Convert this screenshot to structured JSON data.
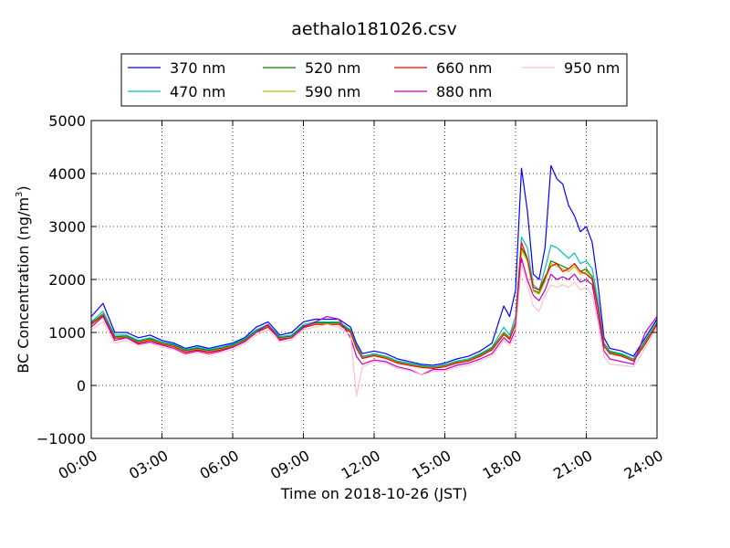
{
  "chart_data": {
    "type": "line",
    "title": "aethalo181026.csv",
    "xlabel": "Time on 2018-10-26 (JST)",
    "ylabel": "BC Concentration (ng/m",
    "ylabel_sup": "3",
    "ylabel_end": ")",
    "x_unit": "hour",
    "xlim": [
      0,
      24
    ],
    "ylim": [
      -1000,
      5000
    ],
    "x_ticks": [
      0,
      3,
      6,
      9,
      12,
      15,
      18,
      21,
      24
    ],
    "x_tick_labels": [
      "00:00",
      "03:00",
      "06:00",
      "09:00",
      "12:00",
      "15:00",
      "18:00",
      "21:00",
      "24:00"
    ],
    "y_ticks": [
      -1000,
      0,
      1000,
      2000,
      3000,
      4000,
      5000
    ],
    "y_tick_labels": [
      "−1000",
      "0",
      "1000",
      "2000",
      "3000",
      "4000",
      "5000"
    ],
    "grid": true,
    "legend_position": "top",
    "x": [
      0,
      0.5,
      1,
      1.5,
      2,
      2.5,
      3,
      3.5,
      4,
      4.5,
      5,
      5.5,
      6,
      6.5,
      7,
      7.5,
      8,
      8.5,
      9,
      9.5,
      10,
      10.5,
      11,
      11.25,
      11.5,
      12,
      12.5,
      13,
      13.5,
      14,
      14.5,
      15,
      15.5,
      16,
      16.5,
      17,
      17.5,
      17.75,
      18,
      18.25,
      18.5,
      18.75,
      19,
      19.25,
      19.5,
      19.75,
      20,
      20.25,
      20.5,
      20.75,
      21,
      21.25,
      21.5,
      21.75,
      22,
      22.5,
      23,
      23.5,
      24
    ],
    "series": [
      {
        "name": "370 nm",
        "color": "#0000ff",
        "values": [
          1300,
          1550,
          1000,
          1000,
          900,
          950,
          850,
          800,
          700,
          750,
          700,
          750,
          800,
          900,
          1100,
          1200,
          950,
          1000,
          1200,
          1250,
          1250,
          1250,
          1100,
          800,
          600,
          650,
          600,
          500,
          450,
          400,
          380,
          420,
          500,
          550,
          650,
          800,
          1500,
          1300,
          1800,
          4100,
          3300,
          2100,
          2000,
          2600,
          4150,
          3900,
          3800,
          3400,
          3200,
          2900,
          3000,
          2700,
          1900,
          900,
          700,
          650,
          550,
          900,
          1250
        ]
      },
      {
        "name": "470 nm",
        "color": "#00bfbf",
        "values": [
          1200,
          1400,
          950,
          950,
          850,
          900,
          820,
          780,
          680,
          720,
          680,
          720,
          780,
          880,
          1050,
          1150,
          920,
          950,
          1150,
          1200,
          1200,
          1200,
          1050,
          750,
          550,
          600,
          550,
          460,
          420,
          380,
          350,
          390,
          460,
          500,
          600,
          720,
          1100,
          950,
          1300,
          2800,
          2600,
          1900,
          1800,
          2200,
          2650,
          2600,
          2500,
          2400,
          2500,
          2300,
          2350,
          2200,
          1600,
          800,
          650,
          600,
          500,
          850,
          1200
        ]
      },
      {
        "name": "520 nm",
        "color": "#008000",
        "values": [
          1180,
          1350,
          920,
          930,
          830,
          880,
          800,
          760,
          660,
          700,
          660,
          700,
          760,
          860,
          1030,
          1130,
          900,
          930,
          1120,
          1180,
          1180,
          1180,
          1030,
          730,
          530,
          580,
          530,
          440,
          400,
          360,
          340,
          370,
          440,
          480,
          580,
          700,
          1000,
          900,
          1200,
          2600,
          2400,
          1800,
          1750,
          2000,
          2350,
          2300,
          2250,
          2200,
          2300,
          2150,
          2200,
          2050,
          1500,
          780,
          630,
          580,
          480,
          820,
          1180
        ]
      },
      {
        "name": "590 nm",
        "color": "#bfbf00",
        "values": [
          1160,
          1330,
          900,
          910,
          810,
          860,
          790,
          740,
          640,
          680,
          640,
          680,
          740,
          840,
          1010,
          1110,
          880,
          910,
          1100,
          1160,
          1160,
          1160,
          1010,
          710,
          520,
          570,
          520,
          430,
          390,
          350,
          330,
          360,
          430,
          470,
          560,
          680,
          980,
          880,
          1180,
          2550,
          2350,
          1780,
          1720,
          1960,
          2300,
          2250,
          2200,
          2150,
          2250,
          2100,
          2150,
          2000,
          1480,
          760,
          610,
          560,
          470,
          800,
          1160
        ]
      },
      {
        "name": "660 nm",
        "color": "#ff0000",
        "values": [
          1150,
          1320,
          890,
          900,
          800,
          850,
          780,
          730,
          630,
          670,
          630,
          670,
          730,
          830,
          1000,
          1100,
          870,
          900,
          1090,
          1150,
          1150,
          1150,
          1000,
          700,
          510,
          560,
          510,
          420,
          380,
          340,
          320,
          350,
          420,
          460,
          550,
          670,
          960,
          870,
          1160,
          2700,
          2400,
          1850,
          1800,
          2050,
          2250,
          2300,
          2150,
          2200,
          2300,
          2150,
          2100,
          2000,
          1450,
          740,
          600,
          550,
          460,
          780,
          1150
        ]
      },
      {
        "name": "880 nm",
        "color": "#bf00bf",
        "values": [
          1100,
          1300,
          850,
          900,
          780,
          820,
          760,
          700,
          600,
          650,
          600,
          650,
          720,
          820,
          1000,
          1150,
          850,
          900,
          1100,
          1200,
          1300,
          1250,
          900,
          550,
          400,
          480,
          450,
          350,
          300,
          200,
          300,
          300,
          380,
          420,
          500,
          600,
          900,
          800,
          1050,
          2400,
          2000,
          1700,
          1600,
          1800,
          2100,
          2000,
          2050,
          2000,
          2100,
          1950,
          2000,
          1900,
          1300,
          650,
          500,
          450,
          400,
          1000,
          1300
        ]
      },
      {
        "name": "950 nm",
        "color": "#ffc0cb",
        "values": [
          1050,
          1200,
          800,
          850,
          750,
          800,
          720,
          680,
          580,
          620,
          580,
          620,
          680,
          780,
          950,
          1050,
          820,
          860,
          1050,
          1100,
          1150,
          1100,
          950,
          -200,
          350,
          450,
          420,
          320,
          280,
          200,
          260,
          280,
          340,
          380,
          460,
          560,
          850,
          750,
          950,
          2300,
          1900,
          1500,
          1400,
          1700,
          1900,
          1850,
          1900,
          1850,
          1950,
          1800,
          1850,
          1700,
          1200,
          550,
          400,
          380,
          350,
          700,
          1100
        ]
      }
    ]
  }
}
